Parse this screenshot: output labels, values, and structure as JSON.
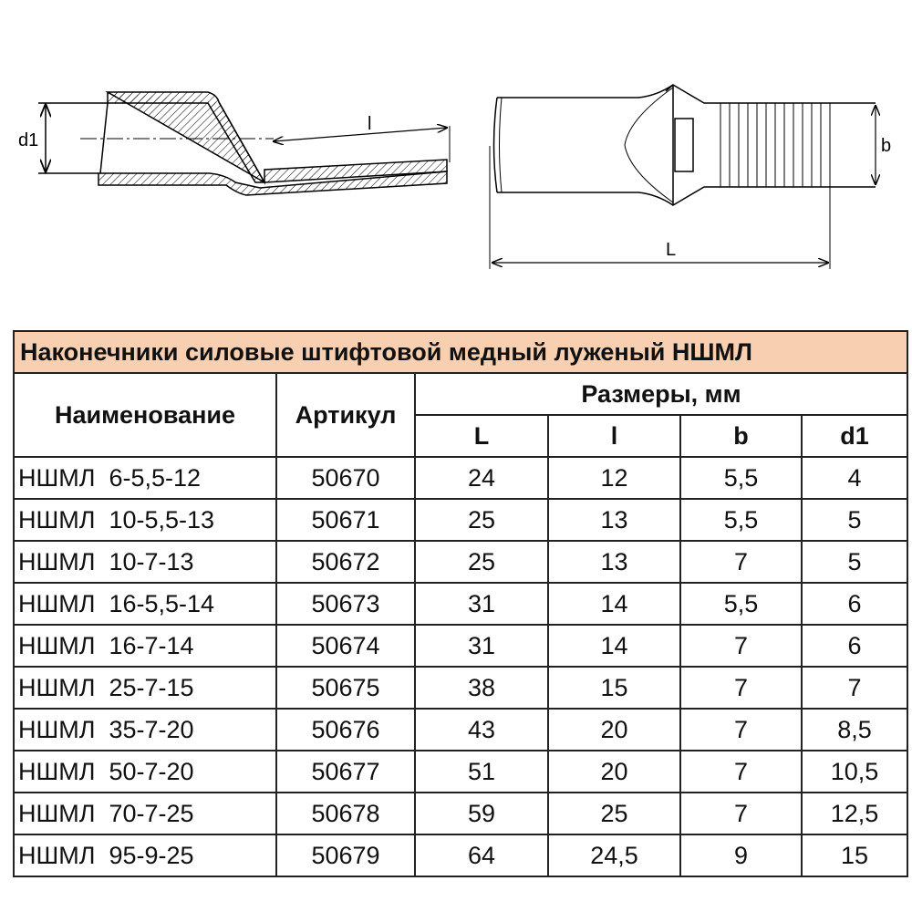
{
  "drawing": {
    "left_labels": {
      "d1": "d1",
      "l": "l"
    },
    "right_labels": {
      "b": "b",
      "L": "L"
    }
  },
  "table": {
    "title": "Наконечники силовые штифтовой медный луженый НШМЛ",
    "title_bg": "#f8cfb0",
    "headers": {
      "name": "Наименование",
      "article": "Артикул",
      "dimensions": "Размеры, мм",
      "sub": [
        "L",
        "l",
        "b",
        "d1"
      ]
    },
    "rows": [
      {
        "name": "НШМЛ  6-5,5-12",
        "article": "50670",
        "L": "24",
        "l": "12",
        "b": "5,5",
        "d1": "4"
      },
      {
        "name": "НШМЛ  10-5,5-13",
        "article": "50671",
        "L": "25",
        "l": "13",
        "b": "5,5",
        "d1": "5"
      },
      {
        "name": "НШМЛ  10-7-13",
        "article": "50672",
        "L": "25",
        "l": "13",
        "b": "7",
        "d1": "5"
      },
      {
        "name": "НШМЛ  16-5,5-14",
        "article": "50673",
        "L": "31",
        "l": "14",
        "b": "5,5",
        "d1": "6"
      },
      {
        "name": "НШМЛ  16-7-14",
        "article": "50674",
        "L": "31",
        "l": "14",
        "b": "7",
        "d1": "6"
      },
      {
        "name": "НШМЛ  25-7-15",
        "article": "50675",
        "L": "38",
        "l": "15",
        "b": "7",
        "d1": "7"
      },
      {
        "name": "НШМЛ  35-7-20",
        "article": "50676",
        "L": "43",
        "l": "20",
        "b": "7",
        "d1": "8,5"
      },
      {
        "name": "НШМЛ  50-7-20",
        "article": "50677",
        "L": "51",
        "l": "20",
        "b": "7",
        "d1": "10,5"
      },
      {
        "name": "НШМЛ  70-7-25",
        "article": "50678",
        "L": "59",
        "l": "25",
        "b": "7",
        "d1": "12,5"
      },
      {
        "name": "НШМЛ  95-9-25",
        "article": "50679",
        "L": "64",
        "l": "24,5",
        "b": "9",
        "d1": "15"
      }
    ]
  }
}
